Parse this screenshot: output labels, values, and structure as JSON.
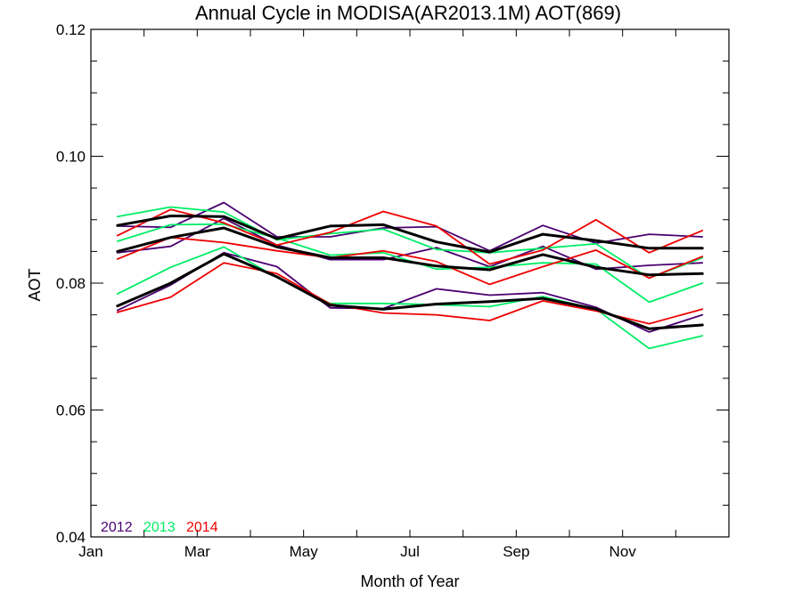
{
  "chart_data": {
    "type": "line",
    "title": "Annual Cycle in MODISA(AR2013.1M) AOT(869)",
    "xlabel": "Month of Year",
    "ylabel": "AOT",
    "xlim": [
      0,
      12
    ],
    "ylim": [
      0.04,
      0.12
    ],
    "x": [
      0.5,
      1.5,
      2.5,
      3.5,
      4.5,
      5.5,
      6.5,
      7.5,
      8.5,
      9.5,
      10.5,
      11.5
    ],
    "x_ticks": [
      {
        "value": 0,
        "label": "Jan"
      },
      {
        "value": 2,
        "label": "Mar"
      },
      {
        "value": 4,
        "label": "May"
      },
      {
        "value": 6,
        "label": "Jul"
      },
      {
        "value": 8,
        "label": "Sep"
      },
      {
        "value": 10,
        "label": "Nov"
      }
    ],
    "y_ticks": [
      {
        "value": 0.04,
        "label": "0.04"
      },
      {
        "value": 0.06,
        "label": "0.06"
      },
      {
        "value": 0.08,
        "label": "0.08"
      },
      {
        "value": 0.1,
        "label": "0.10"
      },
      {
        "value": 0.12,
        "label": "0.12"
      }
    ],
    "legend": [
      {
        "label": "2012",
        "color": "#4b0070"
      },
      {
        "label": "2013",
        "color": "#00ee66"
      },
      {
        "label": "2014",
        "color": "#ee0000"
      }
    ],
    "legend_position": "bottom-left",
    "series": [
      {
        "year": "2012",
        "color": "#4b0070",
        "width": 1.8,
        "values": [
          0.089,
          0.0888,
          0.0927,
          0.0873,
          0.0873,
          0.0887,
          0.0889,
          0.0851,
          0.0891,
          0.0863,
          0.0877,
          0.0873
        ]
      },
      {
        "year": "2012",
        "color": "#4b0070",
        "width": 1.8,
        "values": [
          0.0848,
          0.0858,
          0.0902,
          0.086,
          0.0837,
          0.0837,
          0.0856,
          0.0826,
          0.0858,
          0.0822,
          0.0828,
          0.0832
        ]
      },
      {
        "year": "2012",
        "color": "#4b0070",
        "width": 1.8,
        "values": [
          0.0757,
          0.0797,
          0.0848,
          0.0826,
          0.0761,
          0.076,
          0.0791,
          0.0781,
          0.0785,
          0.0762,
          0.0723,
          0.075
        ]
      },
      {
        "year": "2013",
        "color": "#00ee66",
        "width": 1.8,
        "values": [
          0.0905,
          0.092,
          0.0912,
          0.0868,
          0.0878,
          0.0885,
          0.0853,
          0.0848,
          0.0855,
          0.0862,
          0.0808,
          0.084
        ]
      },
      {
        "year": "2013",
        "color": "#00ee66",
        "width": 1.8,
        "values": [
          0.0866,
          0.0892,
          0.0893,
          0.0871,
          0.0844,
          0.0848,
          0.0822,
          0.0825,
          0.0832,
          0.083,
          0.077,
          0.08
        ]
      },
      {
        "year": "2013",
        "color": "#00ee66",
        "width": 1.8,
        "values": [
          0.0783,
          0.0825,
          0.0857,
          0.0809,
          0.0768,
          0.0768,
          0.0766,
          0.0763,
          0.0779,
          0.0759,
          0.0697,
          0.0717
        ]
      },
      {
        "year": "2014",
        "color": "#ee0000",
        "width": 1.8,
        "values": [
          0.0875,
          0.0916,
          0.0895,
          0.086,
          0.088,
          0.0913,
          0.089,
          0.083,
          0.0852,
          0.09,
          0.0848,
          0.0883
        ]
      },
      {
        "year": "2014",
        "color": "#ee0000",
        "width": 1.8,
        "values": [
          0.0838,
          0.0872,
          0.0864,
          0.0851,
          0.084,
          0.0851,
          0.0834,
          0.0798,
          0.0826,
          0.0852,
          0.0808,
          0.0842
        ]
      },
      {
        "year": "2014",
        "color": "#ee0000",
        "width": 1.8,
        "values": [
          0.0754,
          0.0778,
          0.0832,
          0.0815,
          0.0767,
          0.0753,
          0.075,
          0.0741,
          0.0772,
          0.0756,
          0.0736,
          0.0759
        ]
      },
      {
        "year": "mean",
        "color": "#000000",
        "width": 3,
        "values": [
          0.0891,
          0.0906,
          0.0905,
          0.087,
          0.089,
          0.0892,
          0.0865,
          0.0849,
          0.0877,
          0.0867,
          0.0855,
          0.0855
        ]
      },
      {
        "year": "mean",
        "color": "#000000",
        "width": 3,
        "values": [
          0.085,
          0.0872,
          0.0887,
          0.0857,
          0.084,
          0.084,
          0.0827,
          0.0821,
          0.0845,
          0.0825,
          0.0813,
          0.0815
        ]
      },
      {
        "year": "mean",
        "color": "#000000",
        "width": 3,
        "values": [
          0.0764,
          0.08,
          0.0846,
          0.081,
          0.0765,
          0.0759,
          0.0767,
          0.0771,
          0.0776,
          0.0759,
          0.0728,
          0.0734
        ]
      }
    ]
  }
}
